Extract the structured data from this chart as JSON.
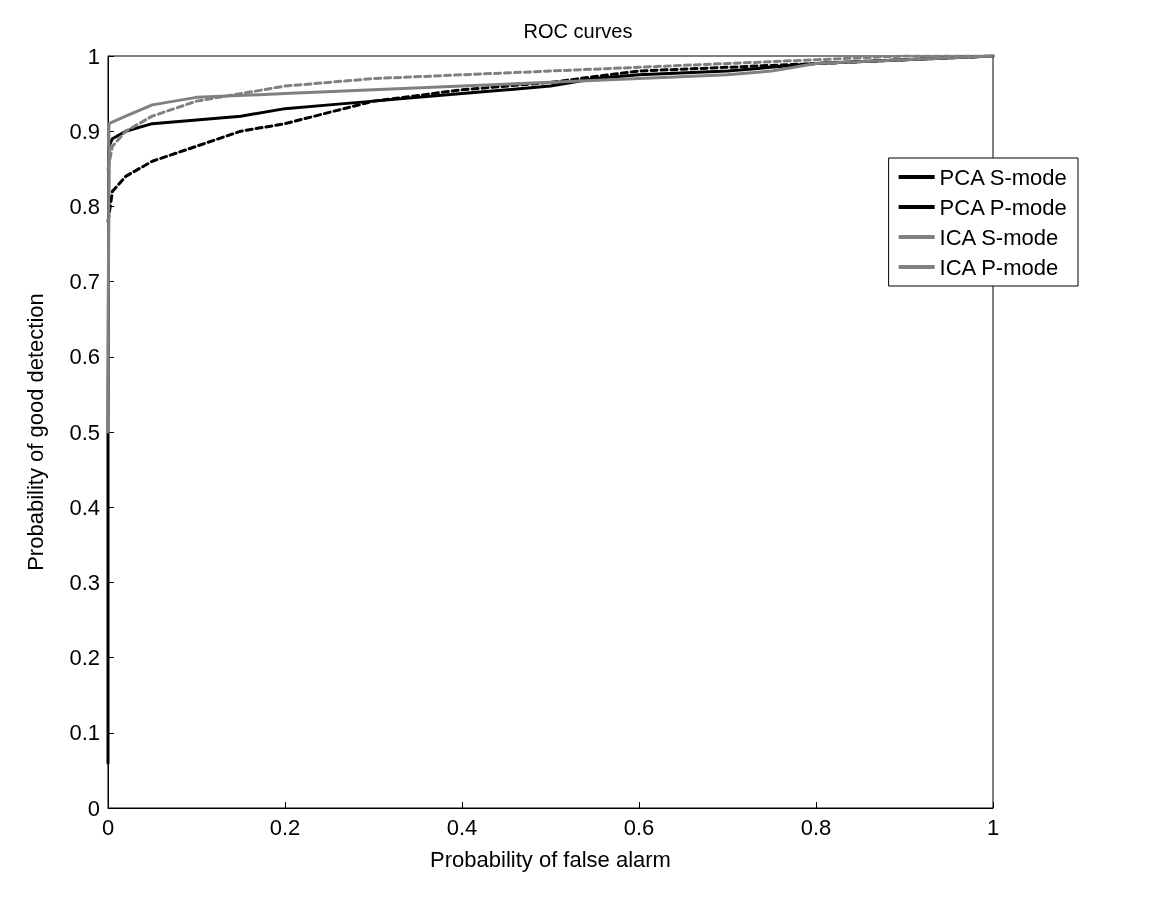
{
  "chart_data": {
    "type": "line",
    "title": "ROC curves",
    "xlabel": "Probability of false alarm",
    "ylabel": "Probability of good detection",
    "xlim": [
      0,
      1
    ],
    "ylim": [
      0,
      1
    ],
    "xticks": [
      0,
      0.2,
      0.4,
      0.6,
      0.8,
      1
    ],
    "yticks": [
      0,
      0.1,
      0.2,
      0.3,
      0.4,
      0.5,
      0.6,
      0.7,
      0.8,
      0.9,
      1
    ],
    "grid": false,
    "legend": "top right",
    "marker": "none",
    "series": [
      {
        "name": "PCA S-mode",
        "color": "#000000",
        "line_style": "solid",
        "x": [
          0,
          0,
          0.001,
          0.005,
          0.02,
          0.05,
          0.1,
          0.15,
          0.2,
          0.25,
          0.3,
          0.4,
          0.5,
          0.55,
          0.6,
          0.7,
          0.8,
          0.9,
          1
        ],
        "values": [
          0.06,
          0.5,
          0.88,
          0.89,
          0.9,
          0.91,
          0.915,
          0.92,
          0.93,
          0.935,
          0.94,
          0.95,
          0.96,
          0.97,
          0.975,
          0.98,
          0.99,
          0.995,
          1
        ]
      },
      {
        "name": "PCA P-mode",
        "color": "#000000",
        "line_style": "dashed",
        "x": [
          0,
          0.005,
          0.02,
          0.05,
          0.1,
          0.15,
          0.2,
          0.25,
          0.3,
          0.4,
          0.5,
          0.6,
          0.7,
          0.8,
          0.9,
          1
        ],
        "values": [
          0.78,
          0.82,
          0.84,
          0.86,
          0.88,
          0.9,
          0.91,
          0.925,
          0.94,
          0.955,
          0.965,
          0.98,
          0.985,
          0.99,
          0.995,
          1
        ]
      },
      {
        "name": "ICA S-mode",
        "color": "#808080",
        "line_style": "solid",
        "x": [
          0,
          0.001,
          0.02,
          0.05,
          0.1,
          0.2,
          0.3,
          0.4,
          0.5,
          0.6,
          0.7,
          0.75,
          0.8,
          0.9,
          1
        ],
        "values": [
          0.5,
          0.91,
          0.92,
          0.935,
          0.945,
          0.95,
          0.955,
          0.96,
          0.965,
          0.97,
          0.975,
          0.98,
          0.99,
          0.995,
          1
        ]
      },
      {
        "name": "ICA P-mode",
        "color": "#808080",
        "line_style": "dashed",
        "x": [
          0,
          0.005,
          0.02,
          0.05,
          0.1,
          0.2,
          0.3,
          0.4,
          0.5,
          0.6,
          0.7,
          0.8,
          0.9,
          1
        ],
        "values": [
          0.85,
          0.88,
          0.9,
          0.92,
          0.94,
          0.96,
          0.97,
          0.975,
          0.98,
          0.985,
          0.99,
          0.995,
          1,
          1
        ]
      }
    ]
  }
}
